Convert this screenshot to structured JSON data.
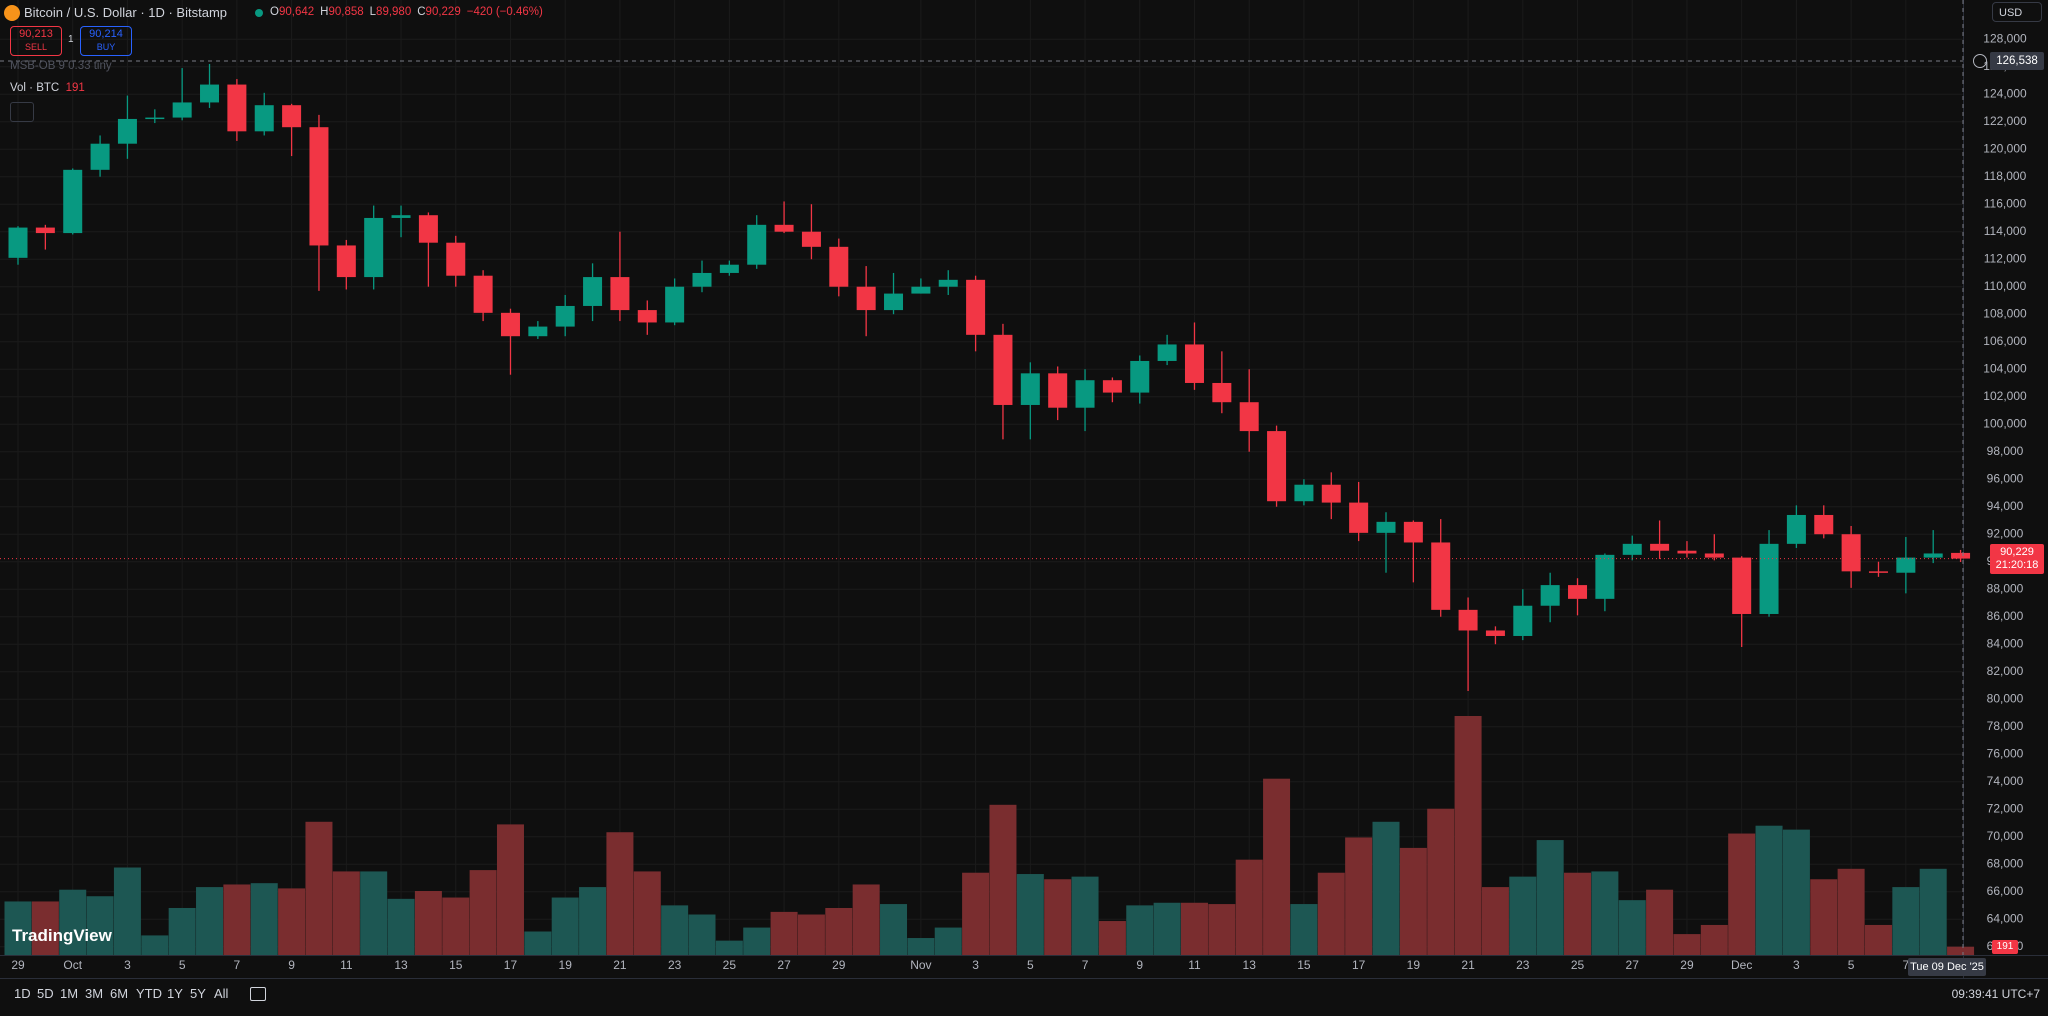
{
  "ui": {
    "symbol_title": "Bitcoin / U.S. Dollar · 1D · Bitstamp",
    "ohlc": [
      {
        "key": "O",
        "value": "90,642"
      },
      {
        "key": "H",
        "value": "90,858"
      },
      {
        "key": "L",
        "value": "89,980"
      },
      {
        "key": "C",
        "value": "90,229"
      }
    ],
    "change": "−420 (−0.46%)",
    "sell": {
      "price": "90,213",
      "label": "SELL"
    },
    "spread": "1",
    "buy": {
      "price": "90,214",
      "label": "BUY"
    },
    "indicator": "MSB-OB 9 0.33 tiny",
    "volume_label": "Vol · BTC",
    "currency": "USD",
    "crosshair_price": "126,538",
    "last_price": "90,229",
    "countdown": "21:20:18",
    "crosshair_date": "Tue 09 Dec '25",
    "ranges": [
      "1D",
      "5D",
      "1M",
      "3M",
      "6M",
      "YTD",
      "1Y",
      "5Y",
      "All"
    ],
    "clock": "09:39:41 UTC+7",
    "brand": "TradingView"
  },
  "chart_data": {
    "type": "candlestick",
    "categories": [
      "29",
      null,
      "Oct",
      null,
      "3",
      null,
      "5",
      null,
      "7",
      null,
      "9",
      null,
      "11",
      null,
      "13",
      null,
      "15",
      null,
      "17",
      null,
      "19",
      null,
      "21",
      null,
      "23",
      null,
      "25",
      null,
      "27",
      null,
      "29",
      null,
      null,
      "Nov",
      null,
      "3",
      null,
      "5",
      null,
      "7",
      null,
      "9",
      null,
      "11",
      null,
      "13",
      null,
      "15",
      null,
      "17",
      null,
      "19",
      null,
      "21",
      null,
      "23",
      null,
      "25",
      null,
      "27",
      null,
      "29",
      null,
      "Dec",
      null,
      "3",
      null,
      "5",
      null,
      "7",
      null,
      null
    ],
    "open": [
      112100,
      114300,
      113900,
      118500,
      120400,
      122200,
      122300,
      123400,
      124700,
      121300,
      123200,
      121600,
      113000,
      110700,
      115000,
      115200,
      113200,
      110800,
      108100,
      106400,
      107100,
      108600,
      110700,
      108300,
      107400,
      110000,
      111000,
      111600,
      114500,
      114000,
      112900,
      110000,
      108300,
      109500,
      110000,
      110500,
      106500,
      101400,
      103700,
      101200,
      103200,
      102300,
      104600,
      105800,
      103000,
      101600,
      99500,
      94400,
      95600,
      94300,
      92100,
      92900,
      91400,
      86500,
      85000,
      84600,
      86800,
      88300,
      87300,
      90500,
      91300,
      90800,
      90600,
      90300,
      86200,
      91300,
      93400,
      92000,
      89300,
      89200,
      90300,
      90642
    ],
    "high": [
      114400,
      114500,
      118600,
      121000,
      123900,
      122900,
      125900,
      126200,
      125100,
      124100,
      123300,
      122500,
      113400,
      115900,
      115900,
      115400,
      113700,
      111200,
      108400,
      107500,
      109400,
      111700,
      114000,
      109000,
      110600,
      111900,
      111900,
      115200,
      116200,
      116000,
      113500,
      111500,
      111000,
      110600,
      111200,
      110800,
      107300,
      104500,
      104200,
      104000,
      103400,
      105000,
      106500,
      107400,
      105300,
      104000,
      99900,
      96000,
      96500,
      95800,
      93600,
      93000,
      93100,
      87400,
      85300,
      88000,
      89200,
      88800,
      90600,
      91900,
      93000,
      91500,
      92000,
      90400,
      92300,
      94100,
      94100,
      92600,
      90000,
      91800,
      92300,
      90858
    ],
    "low": [
      111600,
      112700,
      113800,
      118000,
      119300,
      121900,
      122100,
      123000,
      120600,
      121000,
      119500,
      109700,
      109800,
      109800,
      113600,
      110000,
      110000,
      107500,
      103600,
      106200,
      106400,
      107500,
      107500,
      106500,
      107200,
      109600,
      110800,
      111300,
      113900,
      112000,
      109300,
      106400,
      108000,
      109500,
      109400,
      105300,
      98900,
      98900,
      100300,
      99500,
      101600,
      101500,
      104300,
      102500,
      100800,
      98000,
      94000,
      94100,
      93100,
      91500,
      89200,
      88500,
      86000,
      80600,
      84000,
      84300,
      85600,
      86100,
      86400,
      90100,
      90200,
      90300,
      90100,
      83800,
      86000,
      91000,
      91700,
      88100,
      88900,
      87700,
      89900,
      89980
    ],
    "close": [
      114300,
      113900,
      118500,
      120400,
      122200,
      122300,
      123400,
      124700,
      121300,
      123200,
      121600,
      113000,
      110700,
      115000,
      115200,
      113200,
      110800,
      108100,
      106400,
      107100,
      108600,
      110700,
      108300,
      107400,
      110000,
      111000,
      111600,
      114500,
      114000,
      112900,
      110000,
      108300,
      109500,
      110000,
      110500,
      106500,
      101400,
      103700,
      101200,
      103200,
      102300,
      104600,
      105800,
      103000,
      101600,
      99500,
      94400,
      95600,
      94300,
      92100,
      92900,
      91400,
      86500,
      85000,
      84600,
      86800,
      88300,
      87300,
      90500,
      91300,
      90800,
      90600,
      90300,
      86200,
      91300,
      93400,
      92000,
      89300,
      89200,
      90300,
      90600,
      90229
    ],
    "volume": [
      1230,
      1230,
      1500,
      1350,
      2010,
      450,
      1080,
      1560,
      1620,
      1650,
      1530,
      3060,
      1920,
      1920,
      1290,
      1470,
      1320,
      1950,
      3000,
      540,
      1320,
      1560,
      2820,
      1920,
      1140,
      930,
      330,
      630,
      990,
      930,
      1080,
      1620,
      1170,
      390,
      630,
      1890,
      3450,
      1860,
      1740,
      1800,
      780,
      1140,
      1200,
      1200,
      1170,
      2190,
      4050,
      1170,
      1890,
      2700,
      3060,
      2460,
      3360,
      5490,
      1560,
      1800,
      2640,
      1890,
      1920,
      1260,
      1500,
      480,
      690,
      2790,
      2970,
      2880,
      1740,
      1980,
      690,
      1560,
      1980,
      191
    ],
    "up_color": "#089981",
    "down_color": "#f23645",
    "volume_up_color": "#1d5753",
    "volume_down_color": "#7a2d2f",
    "ylim": [
      61400,
      130850
    ],
    "yticks": [
      {
        "value": 128000,
        "label": "128,000"
      },
      {
        "value": 126000,
        "label": "126,000"
      },
      {
        "value": 124000,
        "label": "124,000"
      },
      {
        "value": 122000,
        "label": "122,000"
      },
      {
        "value": 120000,
        "label": "120,000"
      },
      {
        "value": 118000,
        "label": "118,000"
      },
      {
        "value": 116000,
        "label": "116,000"
      },
      {
        "value": 114000,
        "label": "114,000"
      },
      {
        "value": 112000,
        "label": "112,000"
      },
      {
        "value": 110000,
        "label": "110,000"
      },
      {
        "value": 108000,
        "label": "108,000"
      },
      {
        "value": 106000,
        "label": "106,000"
      },
      {
        "value": 104000,
        "label": "104,000"
      },
      {
        "value": 102000,
        "label": "102,000"
      },
      {
        "value": 100000,
        "label": "100,000"
      },
      {
        "value": 98000,
        "label": "98,000"
      },
      {
        "value": 96000,
        "label": "96,000"
      },
      {
        "value": 94000,
        "label": "94,000"
      },
      {
        "value": 92000,
        "label": "92,000"
      },
      {
        "value": 90000,
        "label": "90,000"
      },
      {
        "value": 88000,
        "label": "88,000"
      },
      {
        "value": 86000,
        "label": "86,000"
      },
      {
        "value": 84000,
        "label": "84,000"
      },
      {
        "value": 82000,
        "label": "82,000"
      },
      {
        "value": 80000,
        "label": "80,000"
      },
      {
        "value": 78000,
        "label": "78,000"
      },
      {
        "value": 76000,
        "label": "76,000"
      },
      {
        "value": 74000,
        "label": "74,000"
      },
      {
        "value": 72000,
        "label": "72,000"
      },
      {
        "value": 70000,
        "label": "70,000"
      },
      {
        "value": 68000,
        "label": "68,000"
      },
      {
        "value": 66000,
        "label": "66,000"
      },
      {
        "value": 64000,
        "label": "64,000"
      },
      {
        "value": 62000,
        "label": "62,000"
      }
    ],
    "grid": true
  }
}
